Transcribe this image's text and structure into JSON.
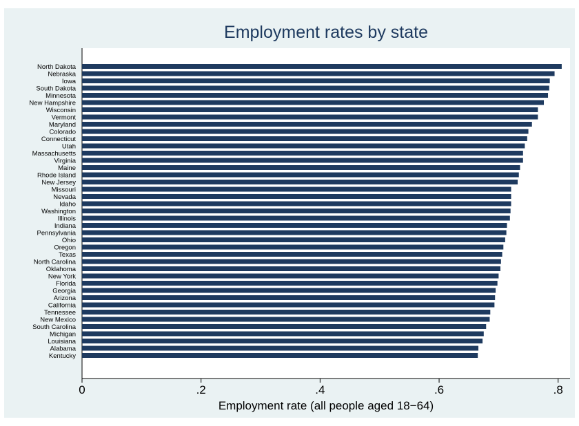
{
  "chart_data": {
    "type": "bar",
    "orientation": "horizontal",
    "title": "Employment rates by state",
    "xlabel": "Employment rate (all people aged 18−64)",
    "ylabel": "",
    "xlim": [
      0,
      0.82
    ],
    "xticks": [
      0,
      0.2,
      0.4,
      0.6,
      0.8
    ],
    "xtick_labels": [
      "0",
      ".2",
      ".4",
      ".6",
      ".8"
    ],
    "grid": false,
    "bar_color": "#1e3a5f",
    "background_color": "#eaf2f3",
    "categories": [
      "North Dakota",
      "Nebraska",
      "Iowa",
      "South Dakota",
      "Minnesota",
      "New Hampshire",
      "Wisconsin",
      "Vermont",
      "Maryland",
      "Colorado",
      "Connecticut",
      "Utah",
      "Massachusetts",
      "Virginia",
      "Maine",
      "Rhode Island",
      "New Jersey",
      "Missouri",
      "Nevada",
      "Idaho",
      "Washington",
      "Illinois",
      "Indiana",
      "Pennsylvania",
      "Ohio",
      "Oregon",
      "Texas",
      "North Carolina",
      "Oklahoma",
      "New York",
      "Florida",
      "Georgia",
      "Arizona",
      "California",
      "Tennessee",
      "New Mexico",
      "South Carolina",
      "Michigan",
      "Louisiana",
      "Alabama",
      "Kentucky"
    ],
    "values": [
      0.806,
      0.794,
      0.786,
      0.785,
      0.783,
      0.776,
      0.766,
      0.766,
      0.756,
      0.75,
      0.748,
      0.744,
      0.741,
      0.741,
      0.736,
      0.734,
      0.732,
      0.721,
      0.721,
      0.721,
      0.72,
      0.719,
      0.714,
      0.713,
      0.711,
      0.708,
      0.706,
      0.704,
      0.703,
      0.7,
      0.698,
      0.695,
      0.694,
      0.693,
      0.686,
      0.685,
      0.679,
      0.675,
      0.673,
      0.666,
      0.665
    ]
  }
}
